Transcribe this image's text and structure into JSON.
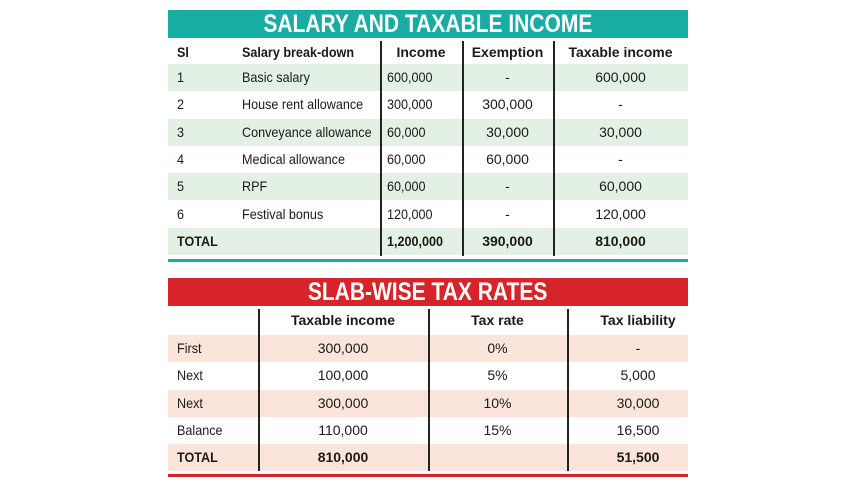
{
  "tables": [
    {
      "title": "SALARY AND TAXABLE INCOME",
      "header": [
        "Sl",
        "Salary break-down",
        "Income",
        "Exemption",
        "Taxable income"
      ],
      "rows": [
        [
          "1",
          "Basic salary",
          "600,000",
          "-",
          "600,000"
        ],
        [
          "2",
          "House rent allowance",
          "300,000",
          "300,000",
          "-"
        ],
        [
          "3",
          "Conveyance allowance",
          "60,000",
          "30,000",
          "30,000"
        ],
        [
          "4",
          "Medical allowance",
          "60,000",
          "60,000",
          "-"
        ],
        [
          "5",
          "RPF",
          "60,000",
          "-",
          "60,000"
        ],
        [
          "6",
          "Festival bonus",
          "120,000",
          "-",
          "120,000"
        ]
      ],
      "total": [
        "TOTAL",
        null,
        "1,200,000",
        "390,000",
        "810,000"
      ]
    },
    {
      "title": "SLAB-WISE TAX RATES",
      "header": [
        null,
        "Taxable income",
        "Tax rate",
        "Tax liability"
      ],
      "rows": [
        [
          "First",
          "300,000",
          "0%",
          "-"
        ],
        [
          "Next",
          "100,000",
          "5%",
          "5,000"
        ],
        [
          "Next",
          "300,000",
          "10%",
          "30,000"
        ],
        [
          "Balance",
          "110,000",
          "15%",
          "16,500"
        ]
      ],
      "total": [
        "TOTAL",
        "810,000",
        null,
        "51,500"
      ]
    }
  ]
}
